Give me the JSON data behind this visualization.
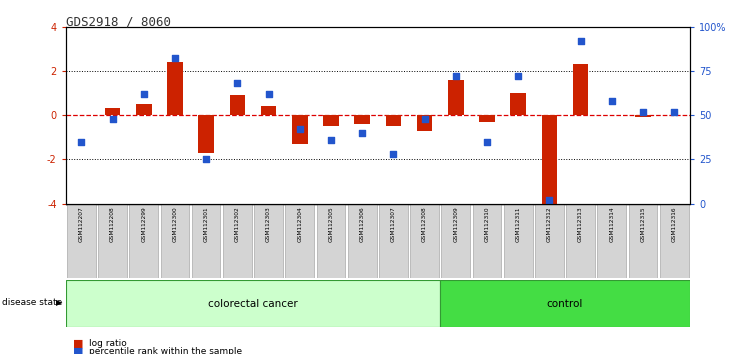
{
  "title": "GDS2918 / 8060",
  "samples": [
    "GSM112207",
    "GSM112208",
    "GSM112299",
    "GSM112300",
    "GSM112301",
    "GSM112302",
    "GSM112303",
    "GSM112304",
    "GSM112305",
    "GSM112306",
    "GSM112307",
    "GSM112308",
    "GSM112309",
    "GSM112310",
    "GSM112311",
    "GSM112312",
    "GSM112313",
    "GSM112314",
    "GSM112315",
    "GSM112316"
  ],
  "log_ratio": [
    0.0,
    0.3,
    0.5,
    2.4,
    -1.7,
    0.9,
    0.4,
    -1.3,
    -0.5,
    -0.4,
    -0.5,
    -0.7,
    1.6,
    -0.3,
    1.0,
    -4.1,
    2.3,
    0.0,
    -0.1,
    0.0
  ],
  "percentile_rank": [
    35,
    48,
    62,
    82,
    25,
    68,
    62,
    42,
    36,
    40,
    28,
    48,
    72,
    35,
    72,
    2,
    92,
    58,
    52,
    52
  ],
  "disease_groups": [
    {
      "label": "colorectal cancer",
      "start": 0,
      "end": 12,
      "color": "#ccffcc"
    },
    {
      "label": "control",
      "start": 12,
      "end": 20,
      "color": "#44dd44"
    }
  ],
  "bar_color": "#cc2200",
  "dot_color": "#2255cc",
  "left_ylim": [
    -4,
    4
  ],
  "right_ylim": [
    0,
    100
  ],
  "left_yticks": [
    -4,
    -2,
    0,
    2,
    4
  ],
  "right_yticks": [
    0,
    25,
    50,
    75,
    100
  ],
  "right_yticklabels": [
    "0",
    "25",
    "50",
    "75",
    "100%"
  ],
  "hline_color": "#dd0000",
  "dotline_color": "#000000",
  "background_color": "#ffffff"
}
